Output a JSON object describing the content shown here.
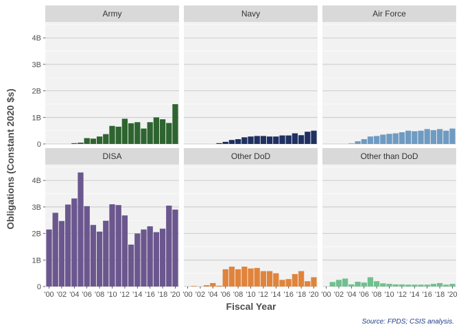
{
  "chart_data": {
    "type": "bar",
    "facet_layout": "3 columns x 2 rows",
    "xlabel": "Fiscal Year",
    "ylabel": "Obligations (Constant 2020 $s)",
    "caption": "Source: FPDS; CSIS analysis.",
    "ylim": [
      0,
      4.6
    ],
    "y_ticks": [
      0,
      1,
      2,
      3,
      4
    ],
    "y_tick_labels": [
      "0",
      "1B",
      "2B",
      "3B",
      "4B"
    ],
    "x": [
      2000,
      2001,
      2002,
      2003,
      2004,
      2005,
      2006,
      2007,
      2008,
      2009,
      2010,
      2011,
      2012,
      2013,
      2014,
      2015,
      2016,
      2017,
      2018,
      2019,
      2020
    ],
    "x_tick_labels": [
      "'00",
      "'02",
      "'04",
      "'06",
      "'08",
      "'10",
      "'12",
      "'14",
      "'16",
      "'18",
      "'20"
    ],
    "grid": true,
    "panel_background": "#f2f2f2",
    "strip_background": "#d9d9d9",
    "facets": [
      {
        "name": "Army",
        "color": "#2e6430",
        "values": [
          0,
          0,
          0,
          0,
          0.03,
          0.05,
          0.22,
          0.2,
          0.28,
          0.37,
          0.68,
          0.65,
          0.95,
          0.78,
          0.82,
          0.58,
          0.82,
          1.0,
          0.93,
          0.79,
          1.5
        ]
      },
      {
        "name": "Navy",
        "color": "#1f3061",
        "values": [
          0,
          0,
          0,
          0,
          0,
          0.03,
          0.08,
          0.15,
          0.18,
          0.25,
          0.28,
          0.3,
          0.3,
          0.28,
          0.28,
          0.32,
          0.32,
          0.4,
          0.33,
          0.46,
          0.5
        ]
      },
      {
        "name": "Air Force",
        "color": "#6f9bc2",
        "values": [
          0,
          0,
          0,
          0,
          0.02,
          0.1,
          0.18,
          0.28,
          0.3,
          0.35,
          0.38,
          0.4,
          0.44,
          0.5,
          0.48,
          0.5,
          0.56,
          0.52,
          0.56,
          0.5,
          0.58
        ]
      },
      {
        "name": "DISA",
        "color": "#6b578e",
        "values": [
          2.15,
          2.78,
          2.47,
          3.09,
          3.32,
          4.3,
          3.03,
          2.32,
          2.07,
          2.48,
          3.1,
          3.07,
          2.68,
          1.58,
          2.0,
          2.15,
          2.27,
          2.05,
          2.18,
          3.05,
          2.9
        ]
      },
      {
        "name": "Other DoD",
        "color": "#e0843c",
        "values": [
          0,
          0.02,
          0,
          0.05,
          0.13,
          0.03,
          0.65,
          0.75,
          0.65,
          0.75,
          0.68,
          0.7,
          0.58,
          0.58,
          0.5,
          0.25,
          0.28,
          0.47,
          0.58,
          0.2,
          0.35
        ]
      },
      {
        "name": "Other than DoD",
        "color": "#70c08f",
        "values": [
          0,
          0.17,
          0.25,
          0.3,
          0.08,
          0.18,
          0.15,
          0.35,
          0.2,
          0.12,
          0.1,
          0.08,
          0.08,
          0.07,
          0.07,
          0.07,
          0.07,
          0.1,
          0.13,
          0.07,
          0.1
        ]
      }
    ]
  }
}
